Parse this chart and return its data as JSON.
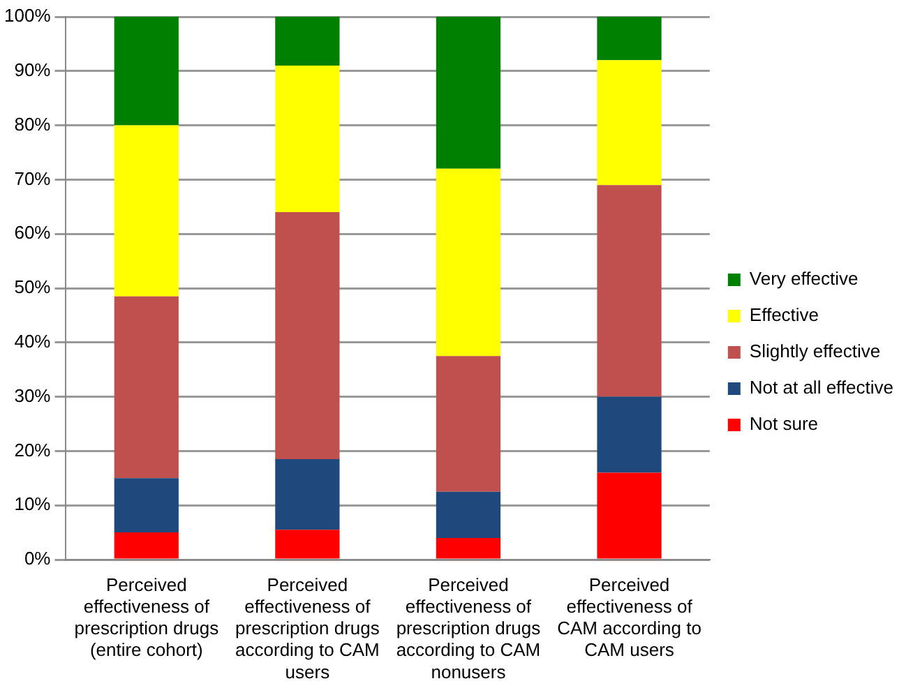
{
  "chart_data": {
    "type": "bar",
    "stacked": true,
    "categories": [
      "Perceived effectiveness of prescription drugs (entire cohort)",
      "Perceived effectiveness of prescription drugs according to CAM users",
      "Perceived effectiveness of prescription drugs according to CAM nonusers",
      "Perceived effectiveness of CAM according to CAM users"
    ],
    "series": [
      {
        "name": "Not sure",
        "color": "#ff0000",
        "values": [
          5,
          5.5,
          4,
          16
        ]
      },
      {
        "name": "Not at all effective",
        "color": "#1f497d",
        "values": [
          10,
          13,
          8.5,
          14
        ]
      },
      {
        "name": "Slightly effective",
        "color": "#c0504d",
        "values": [
          33.5,
          45.5,
          25,
          39
        ]
      },
      {
        "name": "Effective",
        "color": "#ffff00",
        "values": [
          31.5,
          27,
          34.5,
          23
        ]
      },
      {
        "name": "Very effective",
        "color": "#008000",
        "values": [
          20,
          9,
          28,
          8
        ]
      }
    ],
    "ylim": [
      0,
      100
    ],
    "yticks": [
      {
        "value": 0,
        "label": "0%"
      },
      {
        "value": 10,
        "label": "10%"
      },
      {
        "value": 20,
        "label": "20%"
      },
      {
        "value": 30,
        "label": "30%"
      },
      {
        "value": 40,
        "label": "40%"
      },
      {
        "value": 50,
        "label": "50%"
      },
      {
        "value": 60,
        "label": "60%"
      },
      {
        "value": 70,
        "label": "70%"
      },
      {
        "value": 80,
        "label": "80%"
      },
      {
        "value": 90,
        "label": "90%"
      },
      {
        "value": 100,
        "label": "100%"
      }
    ],
    "grid": "y",
    "legend": "right"
  }
}
